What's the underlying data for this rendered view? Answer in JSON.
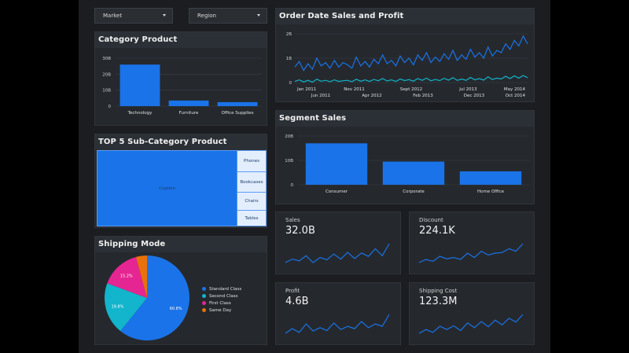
{
  "filters": {
    "market": {
      "label": "Market"
    },
    "region": {
      "label": "Region"
    }
  },
  "colors": {
    "primary": "#1a73e8",
    "teal": "#12b5cb",
    "pink": "#e52592",
    "orange": "#e8710a"
  },
  "category_product": {
    "title": "Category Product",
    "chart_data": {
      "type": "bar",
      "categories": [
        "Technology",
        "Furniture",
        "Office Supplies"
      ],
      "values": [
        26,
        3.5,
        2.5
      ],
      "ylim": [
        0,
        30
      ],
      "yticks": [
        "30B",
        "20B",
        "10B",
        "0"
      ]
    }
  },
  "order_date": {
    "title": "Order Date Sales and Profit",
    "chart_data": {
      "type": "line",
      "yticks": [
        "2B",
        "1B",
        "0"
      ],
      "xticks_top": [
        "Jan 2011",
        "Nov 2011",
        "Sept 2012",
        "Jul 2013",
        "May 2014"
      ],
      "xticks_bottom": [
        "Jun 2011",
        "Apr 2012",
        "Feb 2013",
        "Dec 2013",
        "Oct 2014"
      ],
      "series": [
        {
          "name": "Sales",
          "values": [
            0.7,
            0.95,
            0.55,
            0.85,
            0.6,
            1.1,
            0.75,
            0.9,
            0.65,
            1.0,
            0.7,
            0.9,
            0.8,
            0.65,
            1.15,
            0.75,
            0.95,
            0.7,
            1.05,
            0.85,
            1.25,
            0.85,
            1.0,
            0.75,
            1.2,
            0.9,
            1.1,
            0.8,
            1.25,
            1.0,
            1.35,
            0.9,
            1.15,
            0.95,
            1.3,
            1.05,
            1.45,
            1.0,
            1.25,
            1.05,
            1.5,
            1.15,
            1.35,
            1.1,
            1.6,
            1.2,
            1.45,
            1.35,
            1.75,
            1.5,
            1.9,
            1.65,
            2.1,
            1.75
          ]
        },
        {
          "name": "Profit",
          "values": [
            0.05,
            0.12,
            0.03,
            0.1,
            0.02,
            0.15,
            0.06,
            0.1,
            0.04,
            0.12,
            0.05,
            0.08,
            0.1,
            0.04,
            0.15,
            0.06,
            0.12,
            0.05,
            0.14,
            0.08,
            0.18,
            0.07,
            0.12,
            0.05,
            0.16,
            0.09,
            0.13,
            0.06,
            0.18,
            0.1,
            0.2,
            0.08,
            0.14,
            0.09,
            0.19,
            0.11,
            0.22,
            0.1,
            0.16,
            0.1,
            0.23,
            0.12,
            0.18,
            0.11,
            0.26,
            0.14,
            0.2,
            0.16,
            0.28,
            0.18,
            0.3,
            0.2,
            0.32,
            0.22
          ]
        }
      ],
      "ylim": [
        0,
        2.2
      ]
    }
  },
  "segment_sales": {
    "title": "Segment Sales",
    "chart_data": {
      "type": "bar",
      "categories": [
        "Consumer",
        "Corporate",
        "Home Office"
      ],
      "values": [
        17,
        9.5,
        5.5
      ],
      "ylim": [
        0,
        20
      ],
      "yticks": [
        "20B",
        "10B",
        "0"
      ]
    }
  },
  "top5": {
    "title": "TOP 5 Sub-Category Product",
    "items": [
      "Copiers",
      "Phones",
      "Bookcases",
      "Chairs",
      "Tables"
    ]
  },
  "shipping": {
    "title": "Shipping Mode",
    "chart_data": {
      "type": "pie",
      "labels": [
        "Standard Class",
        "Second Class",
        "First Class",
        "Same Day"
      ],
      "values": [
        60.8,
        19.8,
        15.2,
        4.2
      ],
      "data_labels": [
        "60.8%",
        "19.8%",
        "15.2%",
        ""
      ]
    }
  },
  "kpis": [
    {
      "label": "Sales",
      "value": "32.0B",
      "spark": [
        3,
        4,
        3.5,
        5,
        3,
        4.5,
        3.8,
        5.5,
        4,
        6,
        4.2,
        5.8,
        4.8,
        7,
        5,
        8.5
      ]
    },
    {
      "label": "Discount",
      "value": "224.1K",
      "spark": [
        3,
        3.5,
        3.2,
        4,
        3.6,
        3.8,
        3.5,
        4.5,
        3.8,
        4.8,
        4.2,
        4.5,
        4.6,
        5.2,
        4.8,
        6
      ]
    },
    {
      "label": "Profit",
      "value": "4.6B",
      "spark": [
        3,
        4,
        3.2,
        5,
        3.5,
        4.2,
        3.6,
        5.2,
        3.8,
        4.5,
        4,
        5.5,
        4.2,
        5,
        4.5,
        7
      ]
    },
    {
      "label": "Shipping Cost",
      "value": "123.3M",
      "spark": [
        3,
        3.8,
        3.2,
        4.5,
        3.8,
        4.6,
        3.6,
        5.2,
        4.2,
        5.5,
        4.4,
        5.8,
        4.8,
        6.2,
        5.4,
        7
      ]
    }
  ]
}
